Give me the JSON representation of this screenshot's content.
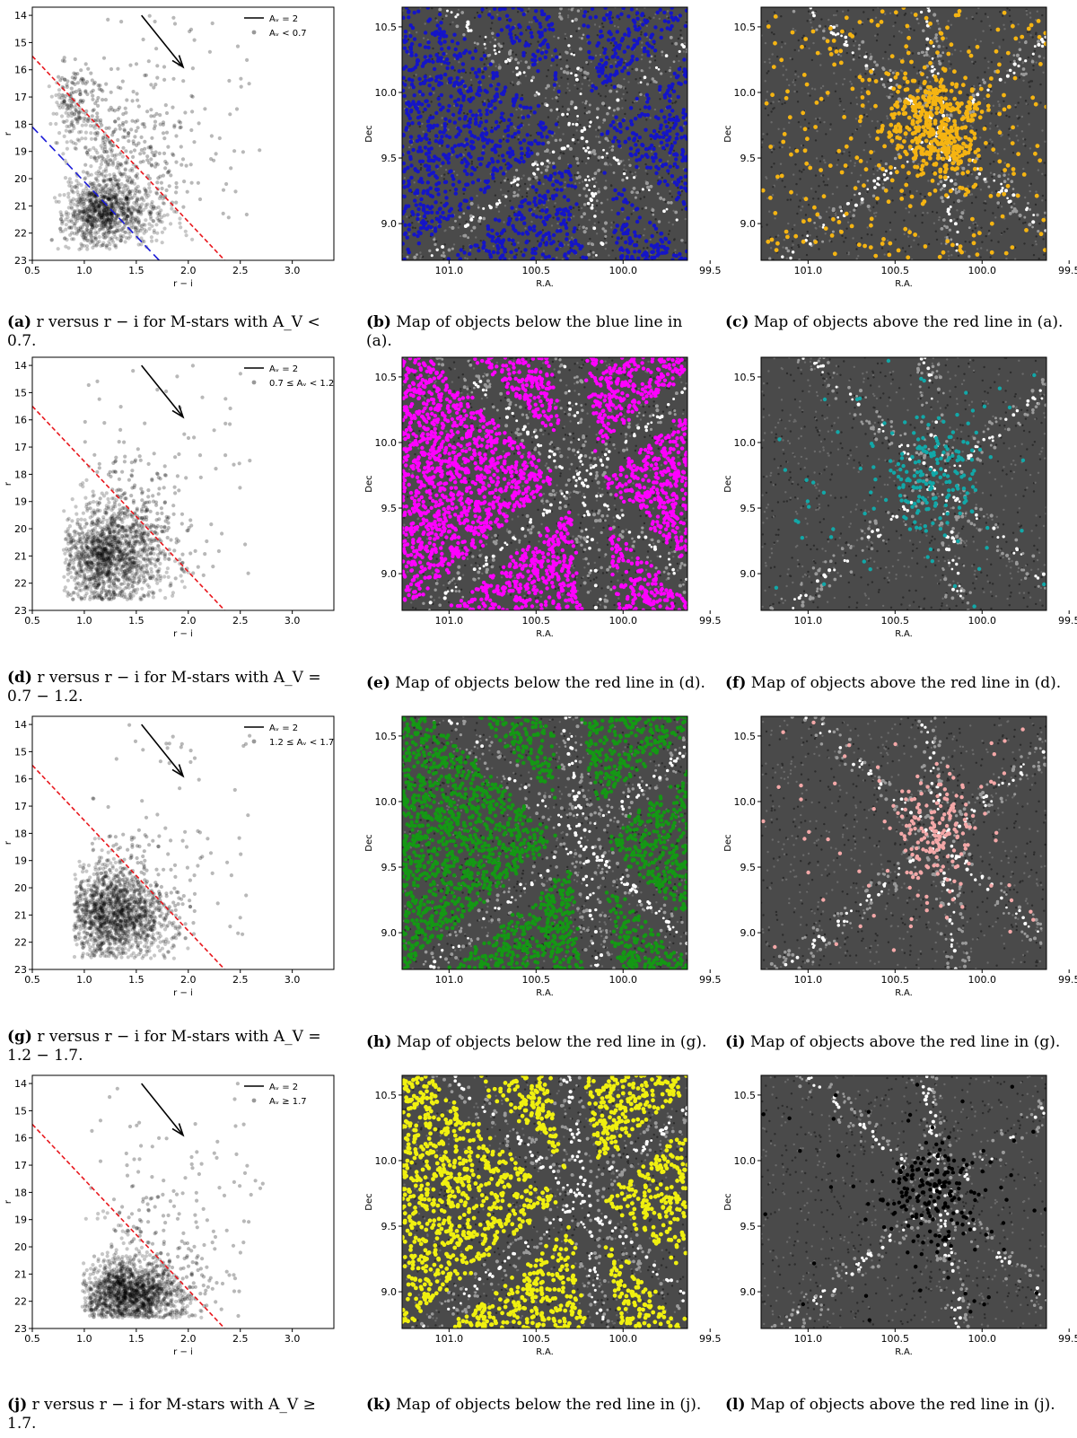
{
  "chart_data": [
    {
      "id": "a",
      "type": "scatter",
      "xlabel": "r − i",
      "ylabel": "r",
      "xlim": [
        0.5,
        3.4
      ],
      "ylim": [
        23,
        13.7
      ],
      "xticks": [
        0.5,
        1.0,
        1.5,
        2.0,
        2.5,
        3.0
      ],
      "yticks": [
        14,
        15,
        16,
        17,
        18,
        19,
        20,
        21,
        22,
        23
      ],
      "legend": {
        "line_label": "Aᵥ = 2",
        "points_label": "Aᵥ < 0.7",
        "position": "top-right"
      },
      "arrow": {
        "from": [
          1.55,
          14.0
        ],
        "to": [
          1.95,
          15.9
        ]
      },
      "lines": [
        {
          "name": "red",
          "color": "#e8171d",
          "points": [
            [
              0.5,
              15.5
            ],
            [
              2.35,
              23.0
            ]
          ]
        },
        {
          "name": "blue",
          "color": "#1b1bd8",
          "points": [
            [
              0.5,
              18.1
            ],
            [
              1.72,
              23.0
            ]
          ]
        }
      ],
      "density": {
        "blobs": [
          [
            1.05,
            21.2,
            0.28,
            0.6,
            0.55
          ],
          [
            1.3,
            19.0,
            0.35,
            1.3,
            0.3
          ],
          [
            0.85,
            17.2,
            0.15,
            0.8,
            0.15
          ]
        ],
        "xmin": 0.62
      },
      "caption": {
        "label": "(a)",
        "text": " r versus r − i for M-stars with A_V < 0.7."
      }
    },
    {
      "id": "b",
      "type": "scatter-map",
      "xlabel": "R.A.",
      "ylabel": "Dec",
      "xlim": [
        101.27,
        99.63
      ],
      "ylim": [
        8.72,
        10.65
      ],
      "xticks": [
        101.0,
        100.5,
        100.0,
        99.5
      ],
      "yticks": [
        9.0,
        9.5,
        10.0,
        10.5
      ],
      "overlay_color": "#1414c8",
      "overlay": "field",
      "caption": {
        "label": "(b)",
        "text": " Map of objects below the blue line in (a)."
      }
    },
    {
      "id": "c",
      "type": "scatter-map",
      "xlabel": "R.A.",
      "ylabel": "Dec",
      "xlim": [
        101.27,
        99.63
      ],
      "ylim": [
        8.72,
        10.65
      ],
      "xticks": [
        101.0,
        100.5,
        100.0,
        99.5
      ],
      "yticks": [
        9.0,
        9.5,
        10.0,
        10.5
      ],
      "overlay_color": "#f5b412",
      "overlay": "cluster-medium",
      "caption": {
        "label": "(c)",
        "text": " Map of objects above the red line in (a)."
      }
    },
    {
      "id": "d",
      "type": "scatter",
      "xlabel": "r − i",
      "ylabel": "r",
      "xlim": [
        0.5,
        3.4
      ],
      "ylim": [
        23,
        13.7
      ],
      "xticks": [
        0.5,
        1.0,
        1.5,
        2.0,
        2.5,
        3.0
      ],
      "yticks": [
        14,
        15,
        16,
        17,
        18,
        19,
        20,
        21,
        22,
        23
      ],
      "legend": {
        "line_label": "Aᵥ = 2",
        "points_label": "0.7 ≤ Aᵥ < 1.2",
        "position": "top-right"
      },
      "arrow": {
        "from": [
          1.55,
          14.0
        ],
        "to": [
          1.95,
          15.9
        ]
      },
      "lines": [
        {
          "name": "red",
          "color": "#e8171d",
          "points": [
            [
              0.5,
              15.5
            ],
            [
              2.35,
              23.0
            ]
          ]
        }
      ],
      "density": {
        "blobs": [
          [
            1.1,
            21.0,
            0.3,
            0.9,
            0.8
          ],
          [
            1.3,
            19.3,
            0.3,
            1.2,
            0.15
          ]
        ],
        "xmin": 0.8
      },
      "caption": {
        "label": "(d)",
        "text": " r versus r − i for M-stars with A_V = 0.7 − 1.2."
      }
    },
    {
      "id": "e",
      "type": "scatter-map",
      "xlabel": "R.A.",
      "ylabel": "Dec",
      "xlim": [
        101.27,
        99.63
      ],
      "ylim": [
        8.72,
        10.65
      ],
      "xticks": [
        101.0,
        100.5,
        100.0,
        99.5
      ],
      "yticks": [
        9.0,
        9.5,
        10.0,
        10.5
      ],
      "overlay_color": "#ff00ff",
      "overlay": "field-dense",
      "caption": {
        "label": "(e)",
        "text": " Map of objects below the red line in (d)."
      }
    },
    {
      "id": "f",
      "type": "scatter-map",
      "xlabel": "R.A.",
      "ylabel": "Dec",
      "xlim": [
        101.27,
        99.63
      ],
      "ylim": [
        8.72,
        10.65
      ],
      "xticks": [
        101.0,
        100.5,
        100.0,
        99.5
      ],
      "yticks": [
        9.0,
        9.5,
        10.0,
        10.5
      ],
      "overlay_color": "#12a8a8",
      "overlay": "cluster-small",
      "caption": {
        "label": "(f)",
        "text": " Map of objects above the red line in (d)."
      }
    },
    {
      "id": "g",
      "type": "scatter",
      "xlabel": "r − i",
      "ylabel": "r",
      "xlim": [
        0.5,
        3.4
      ],
      "ylim": [
        23,
        13.7
      ],
      "xticks": [
        0.5,
        1.0,
        1.5,
        2.0,
        2.5,
        3.0
      ],
      "yticks": [
        14,
        15,
        16,
        17,
        18,
        19,
        20,
        21,
        22,
        23
      ],
      "legend": {
        "line_label": "Aᵥ = 2",
        "points_label": "1.2 ≤ Aᵥ < 1.7",
        "position": "top-right"
      },
      "arrow": {
        "from": [
          1.55,
          14.0
        ],
        "to": [
          1.95,
          15.9
        ]
      },
      "lines": [
        {
          "name": "red",
          "color": "#e8171d",
          "points": [
            [
              0.5,
              15.5
            ],
            [
              2.35,
              23.0
            ]
          ]
        }
      ],
      "density": {
        "blobs": [
          [
            1.15,
            21.0,
            0.28,
            0.8,
            0.8
          ],
          [
            1.35,
            19.5,
            0.3,
            1.0,
            0.15
          ]
        ],
        "xmin": 0.9
      },
      "caption": {
        "label": "(g)",
        "text": " r versus r − i for M-stars with A_V = 1.2 − 1.7."
      }
    },
    {
      "id": "h",
      "type": "scatter-map",
      "xlabel": "R.A.",
      "ylabel": "Dec",
      "xlim": [
        101.27,
        99.63
      ],
      "ylim": [
        8.72,
        10.65
      ],
      "xticks": [
        101.0,
        100.5,
        100.0,
        99.5
      ],
      "yticks": [
        9.0,
        9.5,
        10.0,
        10.5
      ],
      "overlay_color": "#149814",
      "overlay": "field-dense",
      "caption": {
        "label": "(h)",
        "text": " Map of objects below the red line in (g)."
      }
    },
    {
      "id": "i",
      "type": "scatter-map",
      "xlabel": "R.A.",
      "ylabel": "Dec",
      "xlim": [
        101.27,
        99.63
      ],
      "ylim": [
        8.72,
        10.65
      ],
      "xticks": [
        101.0,
        100.5,
        100.0,
        99.5
      ],
      "yticks": [
        9.0,
        9.5,
        10.0,
        10.5
      ],
      "overlay_color": "#f4a8a8",
      "overlay": "cluster-small",
      "caption": {
        "label": "(i)",
        "text": " Map of objects above the red line in (g)."
      }
    },
    {
      "id": "j",
      "type": "scatter",
      "xlabel": "r − i",
      "ylabel": "r",
      "xlim": [
        0.5,
        3.4
      ],
      "ylim": [
        23,
        13.7
      ],
      "xticks": [
        0.5,
        1.0,
        1.5,
        2.0,
        2.5,
        3.0
      ],
      "yticks": [
        14,
        15,
        16,
        17,
        18,
        19,
        20,
        21,
        22,
        23
      ],
      "legend": {
        "line_label": "Aᵥ = 2",
        "points_label": "Aᵥ ≥ 1.7",
        "position": "top-right"
      },
      "arrow": {
        "from": [
          1.55,
          14.0
        ],
        "to": [
          1.95,
          15.9
        ]
      },
      "lines": [
        {
          "name": "red",
          "color": "#e8171d",
          "points": [
            [
              0.5,
              15.5
            ],
            [
              2.35,
              23.0
            ]
          ]
        }
      ],
      "density": {
        "blobs": [
          [
            1.3,
            21.7,
            0.3,
            0.6,
            0.85
          ],
          [
            1.5,
            19.5,
            0.4,
            1.4,
            0.15
          ]
        ],
        "xmin": 0.98
      },
      "caption": {
        "label": "(j)",
        "text": " r versus r − i for M-stars with A_V ≥ 1.7."
      }
    },
    {
      "id": "k",
      "type": "scatter-map",
      "xlabel": "R.A.",
      "ylabel": "Dec",
      "xlim": [
        101.27,
        99.63
      ],
      "ylim": [
        8.72,
        10.65
      ],
      "xticks": [
        101.0,
        100.5,
        100.0,
        99.5
      ],
      "yticks": [
        9.0,
        9.5,
        10.0,
        10.5
      ],
      "overlay_color": "#f0f010",
      "overlay": "field-medium",
      "caption": {
        "label": "(k)",
        "text": " Map of objects below the red line in (j)."
      }
    },
    {
      "id": "l",
      "type": "scatter-map",
      "xlabel": "R.A.",
      "ylabel": "Dec",
      "xlim": [
        101.27,
        99.63
      ],
      "ylim": [
        8.72,
        10.65
      ],
      "xticks": [
        101.0,
        100.5,
        100.0,
        99.5
      ],
      "yticks": [
        9.0,
        9.5,
        10.0,
        10.5
      ],
      "overlay_color": "#000000",
      "overlay": "cluster-small",
      "caption": {
        "label": "(l)",
        "text": " Map of objects above the red line in (j)."
      }
    }
  ]
}
